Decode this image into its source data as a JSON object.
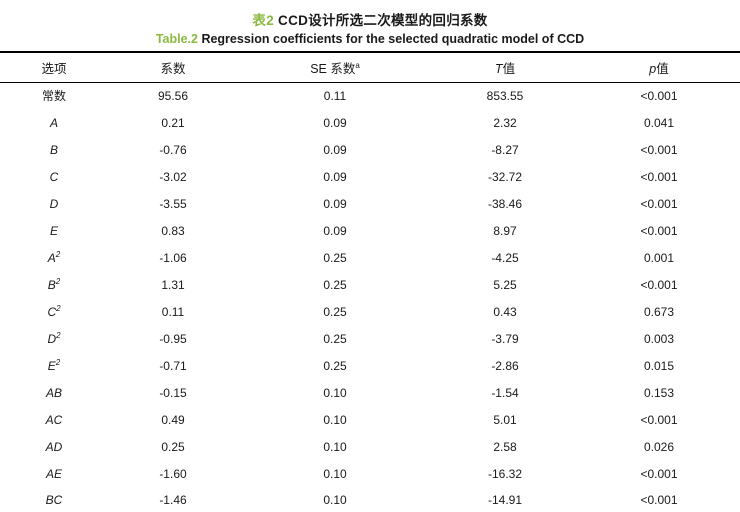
{
  "accent_color": "#8CBA41",
  "title": {
    "zh_prefix": "表2",
    "zh_text": " CCD设计所选二次模型的回归系数",
    "en_prefix": "Table.2",
    "en_text": " Regression coefficients for the selected quadratic model of CCD"
  },
  "chart_data": {
    "type": "table",
    "title": "表2 CCD设计所选二次模型的回归系数 / Table.2 Regression coefficients for the selected quadratic model of CCD",
    "columns": [
      "选项",
      "系数",
      "SE 系数a",
      "T值",
      "p值"
    ],
    "rows": [
      [
        "常数",
        "95.56",
        "0.11",
        "853.55",
        "<0.001"
      ],
      [
        "A",
        "0.21",
        "0.09",
        "2.32",
        "0.041"
      ],
      [
        "B",
        "-0.76",
        "0.09",
        "-8.27",
        "<0.001"
      ],
      [
        "C",
        "-3.02",
        "0.09",
        "-32.72",
        "<0.001"
      ],
      [
        "D",
        "-3.55",
        "0.09",
        "-38.46",
        "<0.001"
      ],
      [
        "E",
        "0.83",
        "0.09",
        "8.97",
        "<0.001"
      ],
      [
        "A2",
        "-1.06",
        "0.25",
        "-4.25",
        "0.001"
      ],
      [
        "B2",
        "1.31",
        "0.25",
        "5.25",
        "<0.001"
      ],
      [
        "C2",
        "0.11",
        "0.25",
        "0.43",
        "0.673"
      ],
      [
        "D2",
        "-0.95",
        "0.25",
        "-3.79",
        "0.003"
      ],
      [
        "E2",
        "-0.71",
        "0.25",
        "-2.86",
        "0.015"
      ],
      [
        "AB",
        "-0.15",
        "0.10",
        "-1.54",
        "0.153"
      ],
      [
        "AC",
        "0.49",
        "0.10",
        "5.01",
        "<0.001"
      ],
      [
        "AD",
        "0.25",
        "0.10",
        "2.58",
        "0.026"
      ],
      [
        "AE",
        "-1.60",
        "0.10",
        "-16.32",
        "<0.001"
      ],
      [
        "BC",
        "-1.46",
        "0.10",
        "-14.91",
        "<0.001"
      ]
    ]
  },
  "table": {
    "headers": [
      {
        "text": "选项"
      },
      {
        "text": "系数"
      },
      {
        "text": "SE 系数",
        "sup": "a"
      },
      {
        "italic": "T",
        "text": "值"
      },
      {
        "italic": "p",
        "text": "值"
      }
    ],
    "rows": [
      {
        "label": {
          "text": "常数",
          "italic": false,
          "sup": ""
        },
        "values": [
          "95.56",
          "0.11",
          "853.55",
          "<0.001"
        ]
      },
      {
        "label": {
          "text": "A",
          "italic": true,
          "sup": ""
        },
        "values": [
          "0.21",
          "0.09",
          "2.32",
          "0.041"
        ]
      },
      {
        "label": {
          "text": "B",
          "italic": true,
          "sup": ""
        },
        "values": [
          "-0.76",
          "0.09",
          "-8.27",
          "<0.001"
        ]
      },
      {
        "label": {
          "text": "C",
          "italic": true,
          "sup": ""
        },
        "values": [
          "-3.02",
          "0.09",
          "-32.72",
          "<0.001"
        ]
      },
      {
        "label": {
          "text": "D",
          "italic": true,
          "sup": ""
        },
        "values": [
          "-3.55",
          "0.09",
          "-38.46",
          "<0.001"
        ]
      },
      {
        "label": {
          "text": "E",
          "italic": true,
          "sup": ""
        },
        "values": [
          "0.83",
          "0.09",
          "8.97",
          "<0.001"
        ]
      },
      {
        "label": {
          "text": "A",
          "italic": true,
          "sup": "2"
        },
        "values": [
          "-1.06",
          "0.25",
          "-4.25",
          "0.001"
        ]
      },
      {
        "label": {
          "text": "B",
          "italic": true,
          "sup": "2"
        },
        "values": [
          "1.31",
          "0.25",
          "5.25",
          "<0.001"
        ]
      },
      {
        "label": {
          "text": "C",
          "italic": true,
          "sup": "2"
        },
        "values": [
          "0.11",
          "0.25",
          "0.43",
          "0.673"
        ]
      },
      {
        "label": {
          "text": "D",
          "italic": true,
          "sup": "2"
        },
        "values": [
          "-0.95",
          "0.25",
          "-3.79",
          "0.003"
        ]
      },
      {
        "label": {
          "text": "E",
          "italic": true,
          "sup": "2"
        },
        "values": [
          "-0.71",
          "0.25",
          "-2.86",
          "0.015"
        ]
      },
      {
        "label": {
          "text": "AB",
          "italic": true,
          "sup": ""
        },
        "values": [
          "-0.15",
          "0.10",
          "-1.54",
          "0.153"
        ]
      },
      {
        "label": {
          "text": "AC",
          "italic": true,
          "sup": ""
        },
        "values": [
          "0.49",
          "0.10",
          "5.01",
          "<0.001"
        ]
      },
      {
        "label": {
          "text": "AD",
          "italic": true,
          "sup": ""
        },
        "values": [
          "0.25",
          "0.10",
          "2.58",
          "0.026"
        ]
      },
      {
        "label": {
          "text": "AE",
          "italic": true,
          "sup": ""
        },
        "values": [
          "-1.60",
          "0.10",
          "-16.32",
          "<0.001"
        ]
      },
      {
        "label": {
          "text": "BC",
          "italic": true,
          "sup": ""
        },
        "values": [
          "-1.46",
          "0.10",
          "-14.91",
          "<0.001"
        ]
      }
    ]
  }
}
